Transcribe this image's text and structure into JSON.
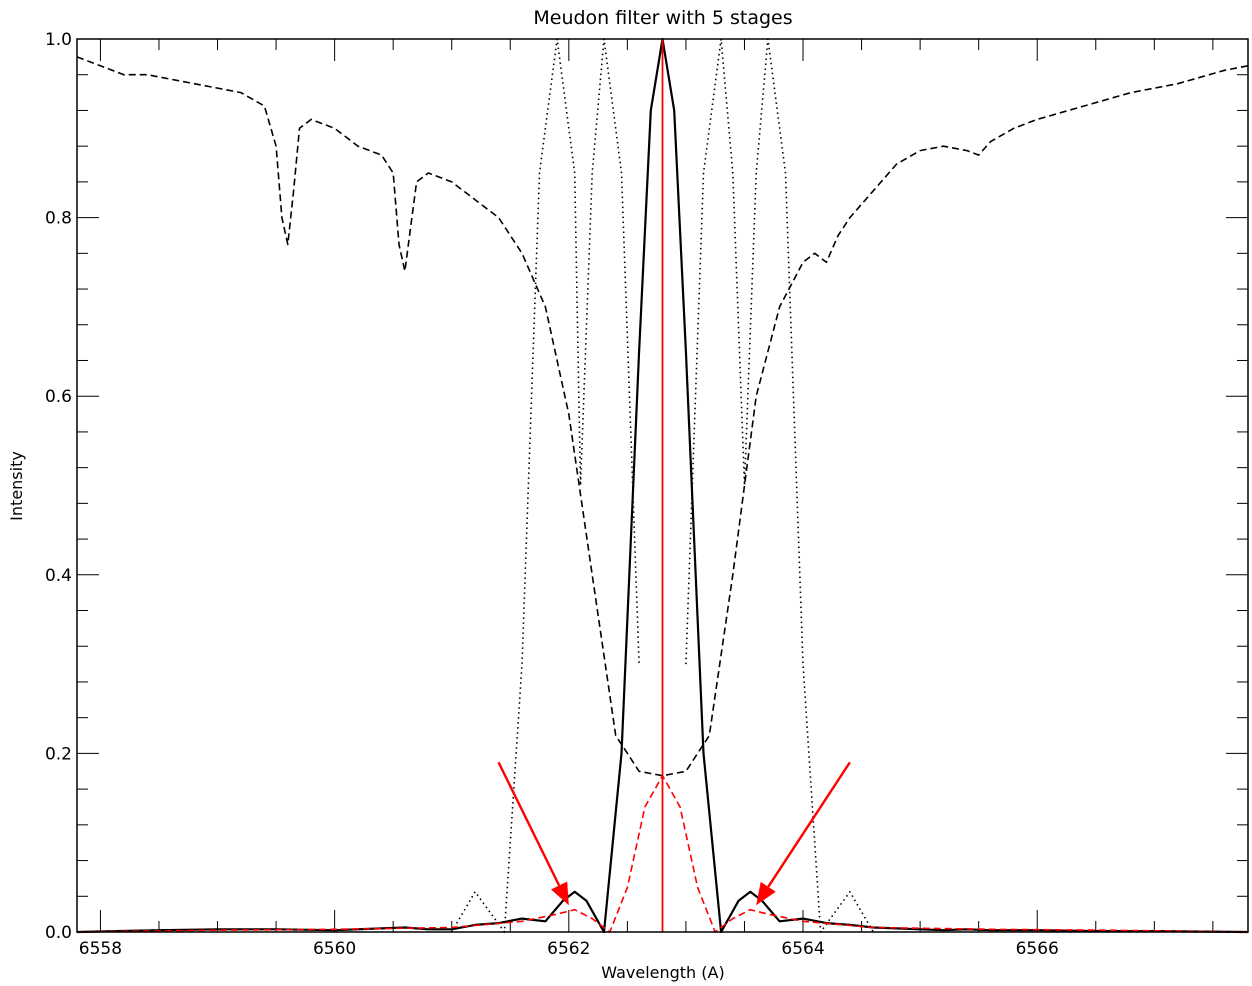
{
  "chart_data": {
    "type": "line",
    "title": "Meudon filter with 5 stages",
    "xlabel": "Wavelength (A)",
    "ylabel": "Intensity",
    "xlim": [
      6557.8,
      6567.8
    ],
    "ylim": [
      0.0,
      1.0
    ],
    "x_ticks": [
      6558,
      6560,
      6562,
      6564,
      6566
    ],
    "x_tick_labels": [
      "6558",
      "6560",
      "6562",
      "6564",
      "6566"
    ],
    "y_ticks": [
      0.0,
      0.2,
      0.4,
      0.6,
      0.8,
      1.0
    ],
    "y_tick_labels": [
      "0.0",
      "0.2",
      "0.4",
      "0.6",
      "0.8",
      "1.0"
    ],
    "center_wavelength": 6562.8,
    "colors": {
      "main": "#000000",
      "accent": "#ff0000"
    },
    "series": [
      {
        "style": "dashed",
        "color": "#000000",
        "x": [
          6557.8,
          6558.0,
          6558.2,
          6558.4,
          6558.6,
          6558.8,
          6559.0,
          6559.2,
          6559.4,
          6559.5,
          6559.55,
          6559.6,
          6559.65,
          6559.7,
          6559.8,
          6560.0,
          6560.2,
          6560.4,
          6560.5,
          6560.55,
          6560.6,
          6560.65,
          6560.7,
          6560.8,
          6561.0,
          6561.2,
          6561.4,
          6561.6,
          6561.8,
          6562.0,
          6562.2,
          6562.4,
          6562.6,
          6562.8,
          6563.0,
          6563.2,
          6563.4,
          6563.6,
          6563.8,
          6564.0,
          6564.1,
          6564.2,
          6564.3,
          6564.4,
          6564.6,
          6564.8,
          6565.0,
          6565.2,
          6565.4,
          6565.5,
          6565.6,
          6565.8,
          6566.0,
          6566.4,
          6566.8,
          6567.2,
          6567.6,
          6567.8
        ],
        "y": [
          0.98,
          0.97,
          0.96,
          0.96,
          0.955,
          0.95,
          0.945,
          0.94,
          0.925,
          0.88,
          0.8,
          0.77,
          0.83,
          0.9,
          0.91,
          0.9,
          0.88,
          0.87,
          0.85,
          0.77,
          0.74,
          0.79,
          0.84,
          0.85,
          0.84,
          0.82,
          0.8,
          0.76,
          0.7,
          0.58,
          0.4,
          0.22,
          0.18,
          0.175,
          0.18,
          0.22,
          0.4,
          0.6,
          0.7,
          0.75,
          0.76,
          0.75,
          0.78,
          0.8,
          0.83,
          0.86,
          0.875,
          0.88,
          0.875,
          0.87,
          0.885,
          0.9,
          0.91,
          0.925,
          0.94,
          0.95,
          0.965,
          0.97
        ]
      },
      {
        "style": "solid",
        "color": "#000000",
        "x": [
          6557.8,
          6558.5,
          6559.0,
          6559.5,
          6560.0,
          6560.4,
          6560.6,
          6560.8,
          6561.0,
          6561.2,
          6561.4,
          6561.6,
          6561.8,
          6561.95,
          6562.05,
          6562.15,
          6562.3,
          6562.45,
          6562.6,
          6562.7,
          6562.8,
          6562.9,
          6563.0,
          6563.15,
          6563.3,
          6563.45,
          6563.55,
          6563.65,
          6563.8,
          6564.0,
          6564.2,
          6564.4,
          6564.6,
          6564.8,
          6565.0,
          6565.2,
          6565.4,
          6565.6,
          6566.0,
          6566.5,
          6567.0,
          6567.8
        ],
        "y": [
          0.0,
          0.002,
          0.003,
          0.003,
          0.002,
          0.004,
          0.005,
          0.003,
          0.003,
          0.008,
          0.01,
          0.015,
          0.012,
          0.035,
          0.045,
          0.035,
          0.0,
          0.2,
          0.65,
          0.92,
          1.0,
          0.92,
          0.65,
          0.2,
          0.0,
          0.035,
          0.045,
          0.035,
          0.012,
          0.015,
          0.01,
          0.008,
          0.005,
          0.004,
          0.003,
          0.002,
          0.003,
          0.002,
          0.002,
          0.001,
          0.001,
          0.0
        ]
      },
      {
        "style": "dotted",
        "color": "#000000",
        "x": [
          6561.0,
          6561.2,
          6561.45,
          6561.6,
          6561.75,
          6561.9,
          6562.05,
          6562.1,
          6562.2,
          6562.3,
          6562.45,
          6562.6
        ],
        "y": [
          0.0,
          0.045,
          0.0,
          0.3,
          0.85,
          1.0,
          0.85,
          0.5,
          0.85,
          1.0,
          0.85,
          0.3
        ]
      },
      {
        "style": "dotted",
        "color": "#000000",
        "x": [
          6563.0,
          6563.15,
          6563.3,
          6563.4,
          6563.5,
          6563.6,
          6563.7,
          6563.85,
          6564.0,
          6564.15,
          6564.4,
          6564.6
        ],
        "y": [
          0.3,
          0.85,
          1.0,
          0.85,
          0.5,
          0.85,
          1.0,
          0.85,
          0.3,
          0.0,
          0.045,
          0.0
        ]
      },
      {
        "style": "dashed",
        "color": "#ff0000",
        "x": [
          6557.8,
          6559.0,
          6560.0,
          6561.0,
          6561.6,
          6561.9,
          6562.05,
          6562.2,
          6562.35,
          6562.5,
          6562.65,
          6562.8,
          6562.95,
          6563.1,
          6563.25,
          6563.4,
          6563.55,
          6563.7,
          6564.0,
          6564.6,
          6565.6,
          6566.6,
          6567.8
        ],
        "y": [
          0.0,
          0.002,
          0.003,
          0.005,
          0.012,
          0.02,
          0.025,
          0.015,
          0.0,
          0.05,
          0.14,
          0.175,
          0.14,
          0.05,
          0.0,
          0.015,
          0.025,
          0.02,
          0.012,
          0.005,
          0.003,
          0.002,
          0.0
        ]
      }
    ],
    "vertical_line": {
      "x": 6562.8,
      "color": "#ff0000"
    },
    "annotations": [
      {
        "type": "arrow",
        "color": "#ff0000",
        "from": [
          6561.4,
          0.19
        ],
        "to": [
          6562.0,
          0.03
        ]
      },
      {
        "type": "arrow",
        "color": "#ff0000",
        "from": [
          6564.4,
          0.19
        ],
        "to": [
          6563.6,
          0.03
        ]
      }
    ]
  }
}
